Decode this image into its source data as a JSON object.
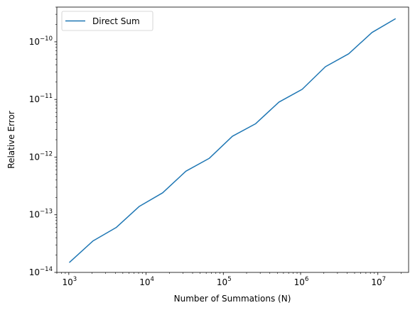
{
  "chart_data": {
    "type": "line",
    "title": "",
    "xlabel": "Number of Summations (N)",
    "ylabel": "Relative Error",
    "xscale": "log",
    "yscale": "log",
    "xlim": [
      700,
      25000000
    ],
    "ylim": [
      1e-14,
      4e-10
    ],
    "grid": false,
    "legend": "upper left",
    "x": [
      1024,
      2048,
      4096,
      8192,
      16384,
      32768,
      65536,
      131072,
      262144,
      524288,
      1048576,
      2097152,
      4194304,
      8388608,
      16777216
    ],
    "series": [
      {
        "name": "Direct Sum",
        "color": "#1f77b4",
        "values": [
          1.5e-14,
          3.5e-14,
          6e-14,
          1.4e-13,
          2.4e-13,
          5.7e-13,
          9.5e-13,
          2.3e-12,
          3.8e-12,
          9e-12,
          1.5e-11,
          3.7e-11,
          6.2e-11,
          1.45e-10,
          2.5e-10
        ]
      }
    ],
    "x_ticks": [
      {
        "value": 1000,
        "base": "10",
        "exp": "3"
      },
      {
        "value": 10000,
        "base": "10",
        "exp": "4"
      },
      {
        "value": 100000,
        "base": "10",
        "exp": "5"
      },
      {
        "value": 1000000,
        "base": "10",
        "exp": "6"
      },
      {
        "value": 10000000,
        "base": "10",
        "exp": "7"
      }
    ],
    "y_ticks": [
      {
        "value": 1e-14,
        "base": "10",
        "exp": "−14"
      },
      {
        "value": 1e-13,
        "base": "10",
        "exp": "−13"
      },
      {
        "value": 1e-12,
        "base": "10",
        "exp": "−12"
      },
      {
        "value": 1e-11,
        "base": "10",
        "exp": "−11"
      },
      {
        "value": 1e-10,
        "base": "10",
        "exp": "−10"
      }
    ]
  }
}
